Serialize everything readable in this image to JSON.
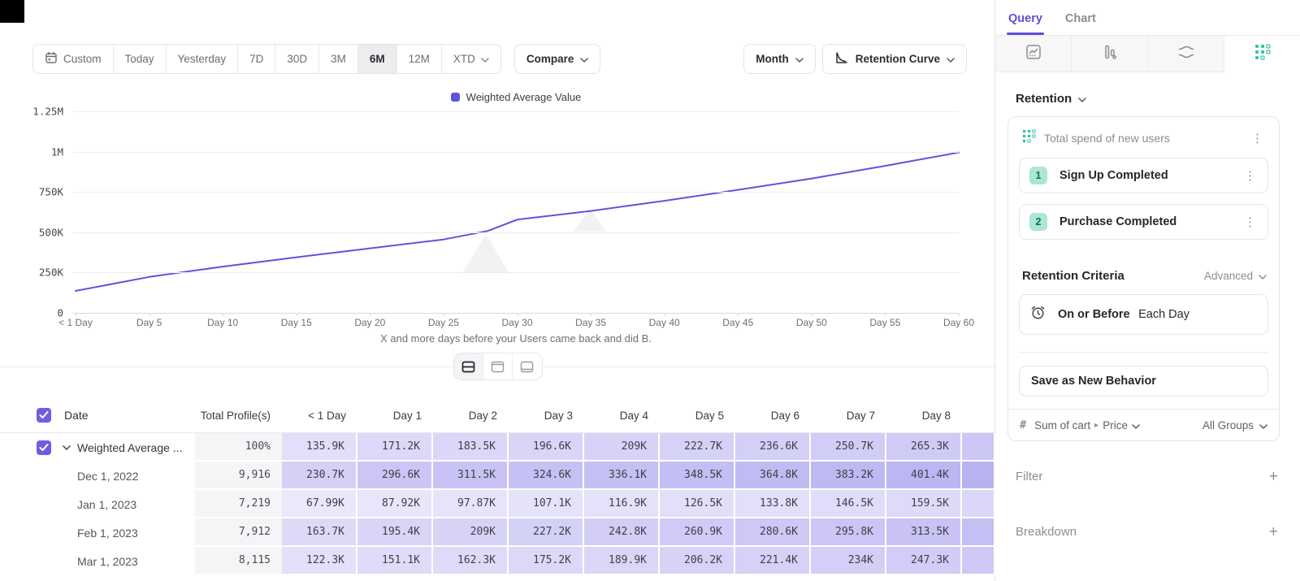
{
  "toolbar": {
    "ranges": [
      "Custom",
      "Today",
      "Yesterday",
      "7D",
      "30D",
      "3M",
      "6M",
      "12M",
      "XTD"
    ],
    "active_range": "6M",
    "compare_label": "Compare",
    "interval_label": "Month",
    "chart_type_label": "Retention Curve"
  },
  "chart_data": {
    "type": "line",
    "title": "",
    "xlabel": "X and more days before your Users came back and did B.",
    "ylabel": "",
    "x_tick_labels": [
      "< 1 Day",
      "Day 5",
      "Day 10",
      "Day 15",
      "Day 20",
      "Day 25",
      "Day 30",
      "Day 35",
      "Day 40",
      "Day 45",
      "Day 50",
      "Day 55",
      "Day 60"
    ],
    "y_tick_labels": [
      "1.25M",
      "1M",
      "750K",
      "500K",
      "250K",
      "0"
    ],
    "ylim": [
      0,
      1250000
    ],
    "xlim": [
      0,
      60
    ],
    "grid": "horizontal",
    "legend_position": "top-center",
    "series": [
      {
        "name": "Weighted Average Value",
        "color": "#5f54dd",
        "x": [
          0,
          5,
          10,
          15,
          20,
          25,
          28,
          30,
          32,
          35,
          40,
          45,
          50,
          55,
          60
        ],
        "values": [
          136000,
          223000,
          287000,
          345000,
          400000,
          455000,
          508000,
          578000,
          600000,
          632000,
          695000,
          763000,
          833000,
          912000,
          995000
        ]
      }
    ]
  },
  "table": {
    "columns": [
      "Date",
      "Total Profile(s)",
      "< 1 Day",
      "Day 1",
      "Day 2",
      "Day 3",
      "Day 4",
      "Day 5",
      "Day 6",
      "Day 7",
      "Day 8"
    ],
    "heat_color_rgb": "100,86,224",
    "rows": [
      {
        "label": "Weighted Average ...",
        "checked": true,
        "expandable": true,
        "total": "100%",
        "cells": [
          "135.9K",
          "171.2K",
          "183.5K",
          "196.6K",
          "209K",
          "222.7K",
          "236.6K",
          "250.7K",
          "265.3K"
        ]
      },
      {
        "label": "Dec 1, 2022",
        "total": "9,916",
        "cells": [
          "230.7K",
          "296.6K",
          "311.5K",
          "324.6K",
          "336.1K",
          "348.5K",
          "364.8K",
          "383.2K",
          "401.4K"
        ]
      },
      {
        "label": "Jan 1, 2023",
        "total": "7,219",
        "cells": [
          "67.99K",
          "87.92K",
          "97.87K",
          "107.1K",
          "116.9K",
          "126.5K",
          "133.8K",
          "146.5K",
          "159.5K"
        ]
      },
      {
        "label": "Feb 1, 2023",
        "total": "7,912",
        "cells": [
          "163.7K",
          "195.4K",
          "209K",
          "227.2K",
          "242.8K",
          "260.9K",
          "280.6K",
          "295.8K",
          "313.5K"
        ]
      },
      {
        "label": "Mar 1, 2023",
        "total": "8,115",
        "cells": [
          "122.3K",
          "151.1K",
          "162.3K",
          "175.2K",
          "189.9K",
          "206.2K",
          "221.4K",
          "234K",
          "247.3K"
        ]
      }
    ]
  },
  "panel": {
    "tabs": [
      {
        "label": "Query",
        "active": true
      },
      {
        "label": "Chart",
        "active": false
      }
    ],
    "icon_tabs": [
      {
        "icon": "insights-chart-icon",
        "active": false
      },
      {
        "icon": "bar-chart-icon",
        "active": false
      },
      {
        "icon": "flows-icon",
        "active": false
      },
      {
        "icon": "retention-grid-icon",
        "active": true
      }
    ],
    "accent_teal": "#35c3a9",
    "accent_purple": "#5b4fd9",
    "section_title": "Retention",
    "behavior_title": "Total spend of new users",
    "steps": [
      {
        "num": "1",
        "label": "Sign Up Completed"
      },
      {
        "num": "2",
        "label": "Purchase Completed"
      }
    ],
    "criteria_label": "Retention Criteria",
    "criteria_mode": "Advanced",
    "condition_primary": "On or Before",
    "condition_secondary": "Each Day",
    "save_button_label": "Save as New Behavior",
    "measure_prefix": "#",
    "measure_label": "Sum of cart",
    "measure_property": "Price",
    "groups_label": "All Groups",
    "filter_label": "Filter",
    "breakdown_label": "Breakdown"
  }
}
